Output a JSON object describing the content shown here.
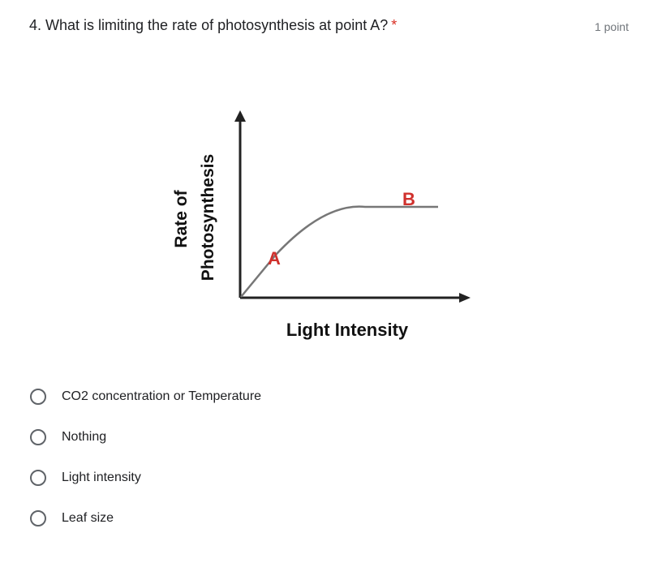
{
  "question": {
    "number_and_text": "4. What is limiting the rate of photosynthesis at point A?",
    "required_mark": "*",
    "points": "1 point"
  },
  "diagram": {
    "y_axis_label_lines": [
      "Rate of",
      "Photosynthesis"
    ],
    "x_axis_label": "Light Intensity",
    "point_a": "A",
    "point_b": "B"
  },
  "options": [
    "CO2 concentration or Temperature",
    "Nothing",
    "Light intensity",
    "Leaf size"
  ]
}
